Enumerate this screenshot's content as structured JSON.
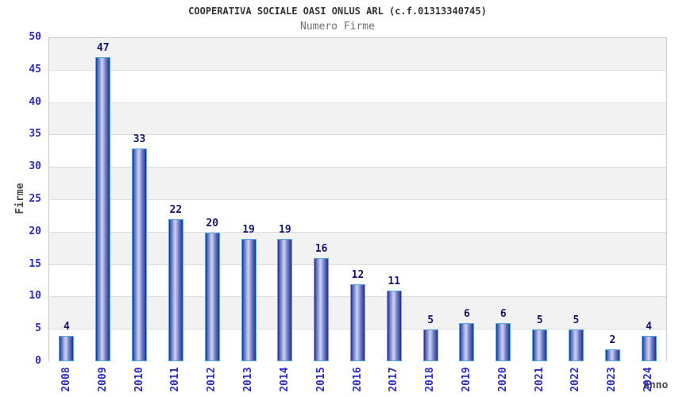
{
  "header": {
    "title": "COOPERATIVA SOCIALE OASI ONLUS ARL (c.f.01313340745)",
    "subtitle": "Numero Firme"
  },
  "chart_data": {
    "type": "bar",
    "title": "COOPERATIVA SOCIALE OASI ONLUS ARL (c.f.01313340745)",
    "subtitle": "Numero Firme",
    "xlabel": "Anno",
    "ylabel": "Firme",
    "categories": [
      "2008",
      "2009",
      "2010",
      "2011",
      "2012",
      "2013",
      "2014",
      "2015",
      "2016",
      "2017",
      "2018",
      "2019",
      "2020",
      "2021",
      "2022",
      "2023",
      "2024"
    ],
    "values": [
      4,
      47,
      33,
      22,
      20,
      19,
      19,
      16,
      12,
      11,
      5,
      6,
      6,
      5,
      5,
      2,
      4
    ],
    "ylim": [
      0,
      50
    ],
    "ytick_step": 5,
    "yticks": [
      0,
      5,
      10,
      15,
      20,
      25,
      30,
      35,
      40,
      45,
      50
    ],
    "grid": true,
    "legend": "none"
  },
  "colors": {
    "background": "#ffffff",
    "title": "#333333",
    "subtitle": "#707070",
    "axis_title": "#4a4a4a",
    "tick_label": "#2b2bcc",
    "value_label": "#15156e",
    "band": "#f2f2f2",
    "gridline": "#dcdcdc",
    "plot_border": "#c8c8c8",
    "bar_border": "#55a4e6",
    "bar_dark": "#262f8d",
    "bar_mid": "#6c7bc4",
    "bar_light": "#ccd5f5"
  }
}
